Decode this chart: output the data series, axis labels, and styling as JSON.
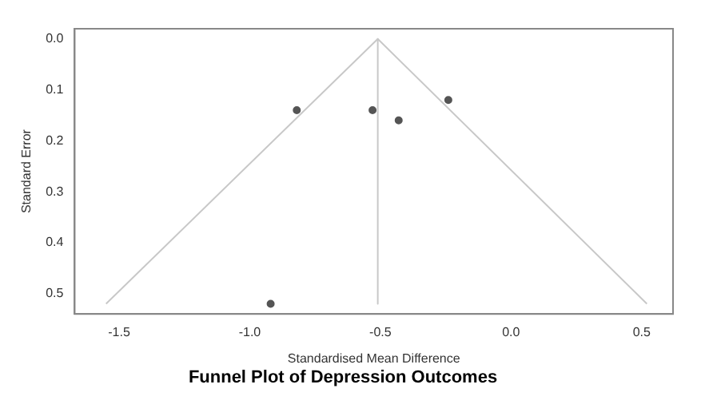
{
  "chart_data": {
    "type": "scatter",
    "title": "Funnel Plot of Depression Outcomes",
    "xlabel": "Standardised Mean Difference",
    "ylabel": "Standard Error",
    "series": [
      {
        "color": "#555555",
        "marker": "circle",
        "x": [
          -0.82,
          -0.53,
          -0.43,
          -0.24,
          -0.92
        ],
        "values": [
          0.14,
          0.14,
          0.16,
          0.12,
          0.52
        ]
      },
      {
        "type": "line",
        "color": "#c8c8c8",
        "marker": "none",
        "x": [
          -1.55,
          -0.51,
          0.52
        ],
        "values": [
          0.52,
          0,
          0.52
        ]
      },
      {
        "type": "line",
        "color": "#c8c8c8",
        "marker": "none",
        "x": [
          -0.51,
          -0.51
        ],
        "values": [
          0,
          0.52
        ]
      }
    ],
    "xlim": [
      -1.67,
      0.62
    ],
    "xticks": [
      -1.5,
      {
        "value": -1,
        "label": "-1.0"
      },
      -0.5,
      {
        "value": 0,
        "label": "0.0"
      },
      0.5
    ],
    "ylim": [
      0.54,
      -0.02
    ],
    "yticks": [
      {
        "value": 0,
        "label": "0.0"
      },
      0.1,
      0.2,
      0.3,
      0.4,
      0.5
    ],
    "grid": false,
    "legend": false
  }
}
